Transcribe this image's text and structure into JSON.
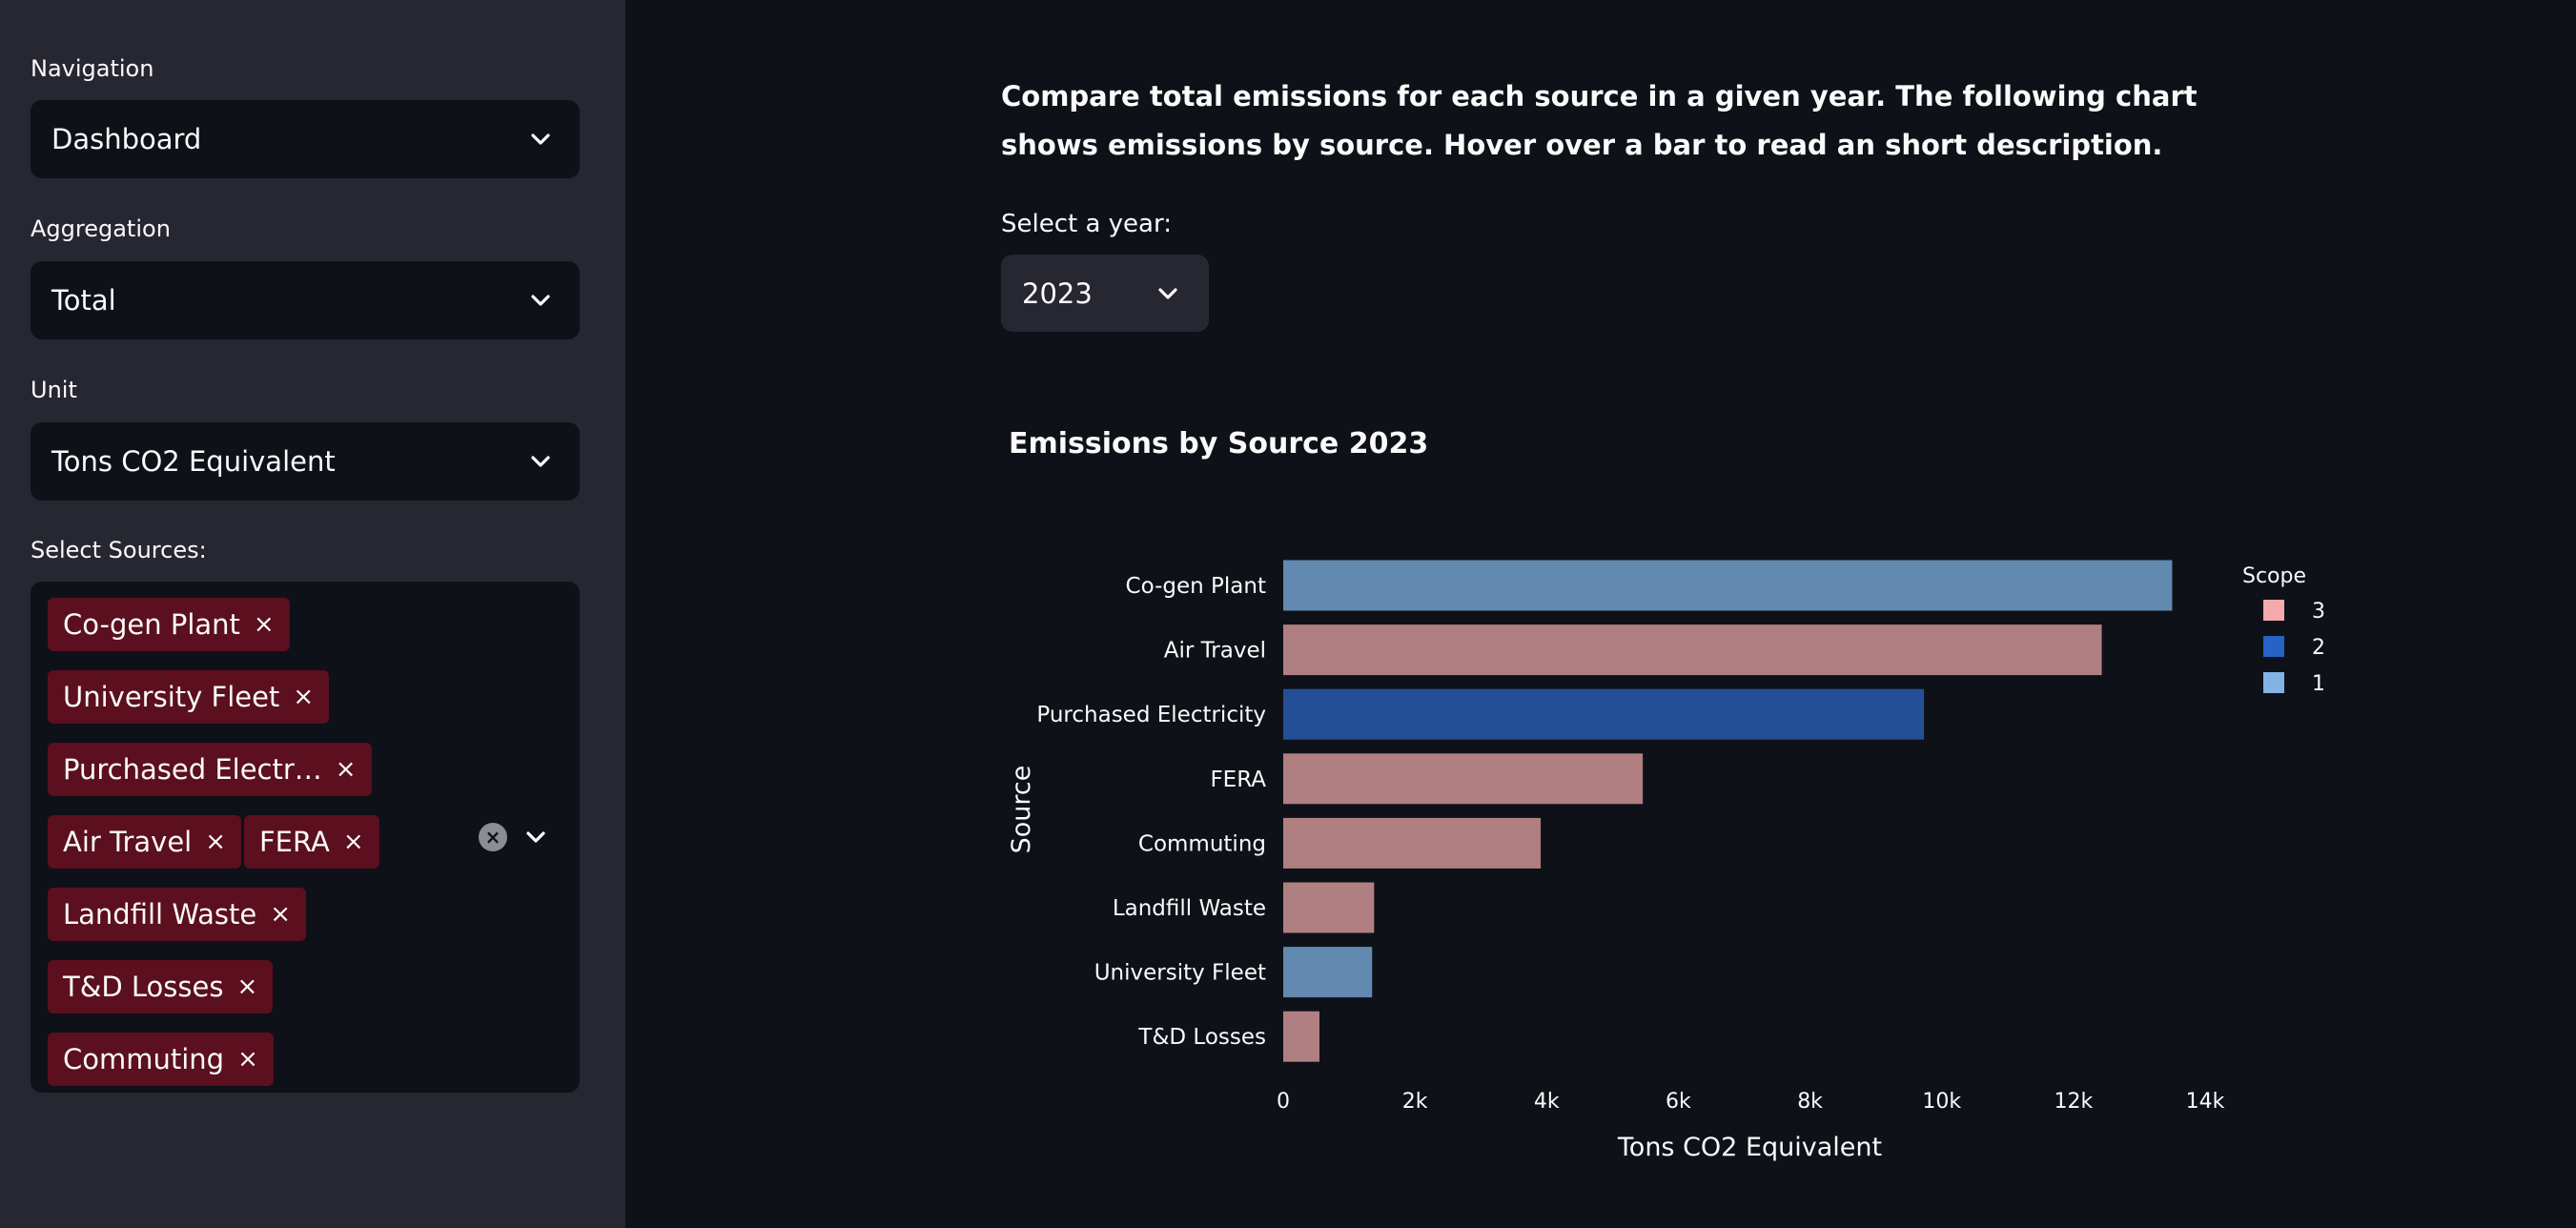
{
  "sidebar": {
    "navigation": {
      "label": "Navigation",
      "value": "Dashboard"
    },
    "aggregation": {
      "label": "Aggregation",
      "value": "Total"
    },
    "unit": {
      "label": "Unit",
      "value": "Tons CO2 Equivalent"
    },
    "sources": {
      "label": "Select Sources:",
      "tags": [
        "Co-gen Plant",
        "University Fleet",
        "Purchased Electr…",
        "Air Travel",
        "FERA",
        "Landfill Waste",
        "T&D Losses",
        "Commuting"
      ],
      "remove_glyph": "×",
      "clear_glyph": "×"
    }
  },
  "main": {
    "intro": "Compare total emissions for each source in a given year. The following chart shows emissions by source. Hover over a bar to read an short description.",
    "year_label": "Select a year:",
    "year_value": "2023"
  },
  "colors": {
    "scope_1": "#6289b0",
    "scope_2": "#234f96",
    "scope_3": "#b07f81",
    "legend_scope_1": "#83b2e4",
    "legend_scope_2": "#2563c7",
    "legend_scope_3": "#f4a9aa",
    "tag_bg": "#5b0f1f"
  },
  "chart_data": {
    "type": "bar",
    "orientation": "horizontal",
    "title": "Emissions by Source 2023",
    "xlabel": "Tons CO2 Equivalent",
    "ylabel": "Source",
    "xlim": [
      0,
      14000
    ],
    "xticks": [
      {
        "value": 0,
        "label": "0"
      },
      {
        "value": 2000,
        "label": "2k"
      },
      {
        "value": 4000,
        "label": "4k"
      },
      {
        "value": 6000,
        "label": "6k"
      },
      {
        "value": 8000,
        "label": "8k"
      },
      {
        "value": 10000,
        "label": "10k"
      },
      {
        "value": 12000,
        "label": "12k"
      },
      {
        "value": 14000,
        "label": "14k"
      }
    ],
    "categories": [
      "Co-gen Plant",
      "Air Travel",
      "Purchased Electricity",
      "FERA",
      "Commuting",
      "Landfill Waste",
      "University Fleet",
      "T&D Losses"
    ],
    "values": [
      13500,
      12430,
      9730,
      5460,
      3910,
      1380,
      1350,
      550
    ],
    "scope": [
      1,
      3,
      2,
      3,
      3,
      3,
      1,
      3
    ],
    "legend": {
      "title": "Scope",
      "position": "right",
      "entries": [
        {
          "label": "3",
          "scope": 3
        },
        {
          "label": "2",
          "scope": 2
        },
        {
          "label": "1",
          "scope": 1
        }
      ]
    },
    "grid": false
  }
}
